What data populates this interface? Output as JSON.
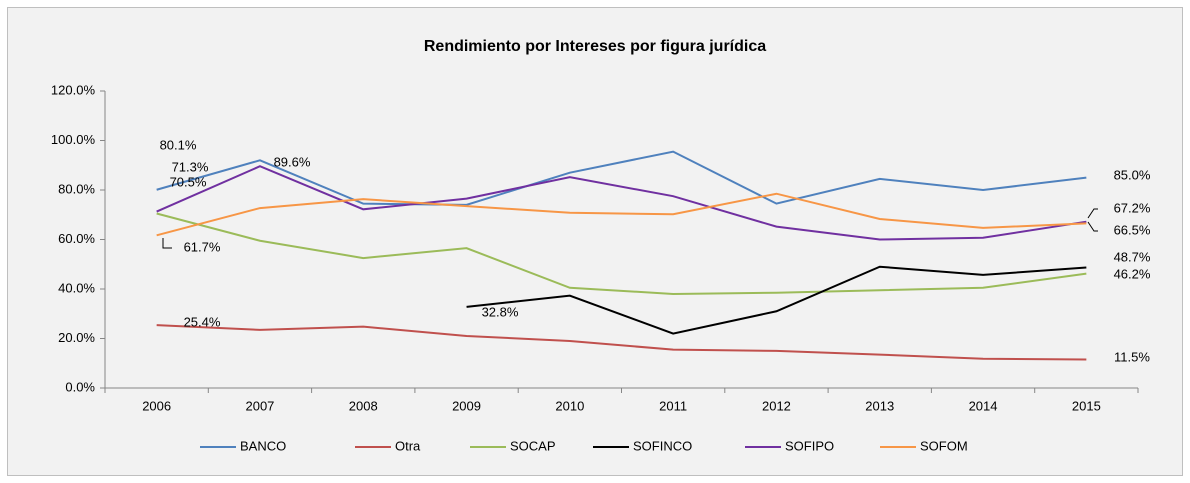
{
  "chart_data": {
    "type": "line",
    "title": "Rendimiento por Intereses por figura jurídica",
    "categories": [
      "2006",
      "2007",
      "2008",
      "2009",
      "2010",
      "2011",
      "2012",
      "2013",
      "2014",
      "2015"
    ],
    "ylim": [
      0,
      120
    ],
    "yticks": [
      {
        "value": 0,
        "label": "0.0%"
      },
      {
        "value": 20,
        "label": "20.0%"
      },
      {
        "value": 40,
        "label": "40.0%"
      },
      {
        "value": 60,
        "label": "60.0%"
      },
      {
        "value": 80,
        "label": "80.0%"
      },
      {
        "value": 100,
        "label": "100.0%"
      },
      {
        "value": 120,
        "label": "120.0%"
      }
    ],
    "legend": "bottom",
    "series": [
      {
        "name": "BANCO",
        "color": "#4f81bd",
        "values": [
          80.1,
          92,
          74.5,
          74,
          87,
          95.5,
          74.5,
          84.5,
          80,
          85.0
        ],
        "value_labels": [
          "80.1%",
          null,
          null,
          null,
          null,
          null,
          null,
          null,
          null,
          "85.0%"
        ]
      },
      {
        "name": "Otra",
        "color": "#c0504d",
        "values": [
          25.4,
          23.5,
          24.8,
          21,
          19,
          15.5,
          15,
          13.5,
          11.8,
          11.5
        ],
        "value_labels": [
          "25.4%",
          null,
          null,
          null,
          null,
          null,
          null,
          null,
          null,
          "11.5%"
        ]
      },
      {
        "name": "SOCAP",
        "color": "#9bbb59",
        "values": [
          70.5,
          59.5,
          52.5,
          56.5,
          40.5,
          38,
          38.5,
          39.5,
          40.5,
          46.2
        ],
        "value_labels": [
          "70.5%",
          null,
          null,
          null,
          null,
          null,
          null,
          null,
          null,
          "46.2%"
        ]
      },
      {
        "name": "SOFINCO",
        "color": "#000000",
        "values": [
          null,
          null,
          null,
          32.8,
          37.3,
          22,
          31,
          49,
          45.7,
          48.7
        ],
        "value_labels": [
          null,
          null,
          null,
          "32.8%",
          null,
          null,
          null,
          null,
          null,
          "48.7%"
        ]
      },
      {
        "name": "SOFIPO",
        "color": "#7030a0",
        "values": [
          71.3,
          89.6,
          72.2,
          76.5,
          85.2,
          77.5,
          65.2,
          60,
          60.7,
          67.2
        ],
        "value_labels": [
          "71.3%",
          "89.6%",
          null,
          null,
          null,
          null,
          null,
          null,
          null,
          "67.2%"
        ]
      },
      {
        "name": "SOFOM",
        "color": "#f79646",
        "values": [
          61.7,
          72.7,
          76.3,
          73.5,
          70.8,
          70.2,
          78.5,
          68.3,
          64.7,
          66.5
        ],
        "value_labels": [
          "61.7%",
          null,
          null,
          null,
          null,
          null,
          null,
          null,
          null,
          "66.5%"
        ]
      }
    ]
  }
}
